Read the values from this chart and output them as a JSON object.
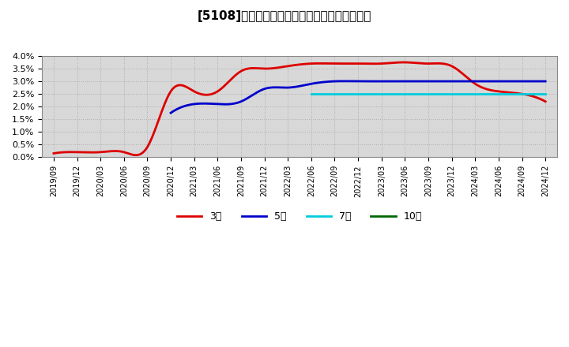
{
  "title": "[5108]　当期純利益マージンの標準偏差の推移",
  "background_color": "#ffffff",
  "plot_bg_color": "#d8d8d8",
  "grid_color": "#aaaaaa",
  "ylim": [
    0.0,
    0.04
  ],
  "yticks": [
    0.0,
    0.005,
    0.01,
    0.015,
    0.02,
    0.025,
    0.03,
    0.035,
    0.04
  ],
  "ytick_labels": [
    "0.0%",
    "0.5%",
    "1.0%",
    "1.5%",
    "2.0%",
    "2.5%",
    "3.0%",
    "3.5%",
    "4.0%"
  ],
  "x_labels": [
    "2019/09",
    "2019/12",
    "2020/03",
    "2020/06",
    "2020/09",
    "2020/12",
    "2021/03",
    "2021/06",
    "2021/09",
    "2021/12",
    "2022/03",
    "2022/06",
    "2022/09",
    "2022/12",
    "2023/03",
    "2023/06",
    "2023/09",
    "2023/12",
    "2024/03",
    "2024/06",
    "2024/09",
    "2024/12"
  ],
  "series": {
    "3year": {
      "color": "#dd0000",
      "label": "3年",
      "linewidth": 2.0,
      "data_x": [
        0,
        1,
        2,
        3,
        4,
        5,
        6,
        7,
        8,
        9,
        10,
        11,
        12,
        13,
        14,
        15,
        16,
        17,
        18,
        19,
        20,
        21
      ],
      "data_y": [
        0.0015,
        0.002,
        0.002,
        0.002,
        0.004,
        0.026,
        0.026,
        0.026,
        0.034,
        0.035,
        0.036,
        0.037,
        0.037,
        0.037,
        0.037,
        0.0375,
        0.037,
        0.036,
        0.029,
        0.026,
        0.025,
        0.022
      ]
    },
    "5year": {
      "color": "#0000cc",
      "label": "5年",
      "linewidth": 2.0,
      "data_x": [
        5,
        6,
        7,
        8,
        9,
        10,
        11,
        12,
        13,
        14,
        15,
        16,
        17,
        18,
        19,
        20,
        21
      ],
      "data_y": [
        0.0175,
        0.021,
        0.021,
        0.022,
        0.027,
        0.0275,
        0.029,
        0.03,
        0.03,
        0.03,
        0.03,
        0.03,
        0.03,
        0.03,
        0.03,
        0.03,
        0.03
      ]
    },
    "7year": {
      "color": "#00ccdd",
      "label": "7年",
      "linewidth": 2.0,
      "data_x": [
        11,
        12,
        13,
        14,
        15,
        16,
        17,
        18,
        19,
        20,
        21
      ],
      "data_y": [
        0.025,
        0.025,
        0.025,
        0.025,
        0.025,
        0.025,
        0.025,
        0.025,
        0.025,
        0.025,
        0.025
      ]
    },
    "10year": {
      "color": "#006600",
      "label": "10年",
      "linewidth": 2.0,
      "data_x": [],
      "data_y": []
    }
  }
}
